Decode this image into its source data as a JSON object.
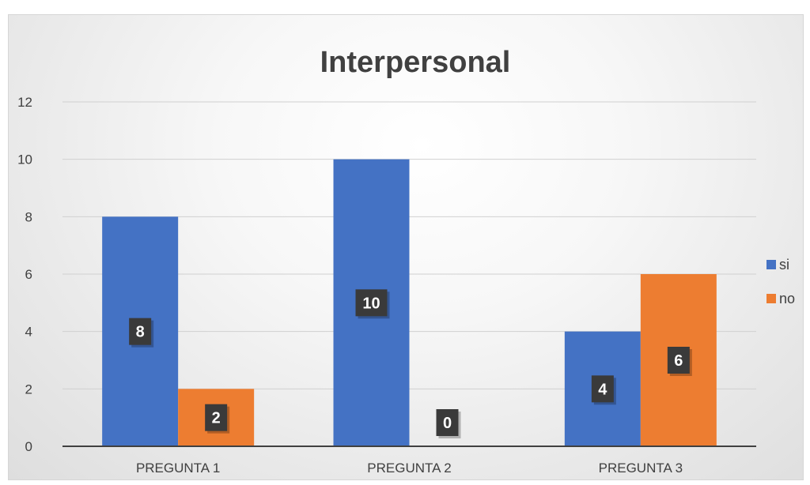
{
  "chart_data": {
    "type": "bar",
    "title": "Interpersonal",
    "categories": [
      "PREGUNTA 1",
      "PREGUNTA 2",
      "PREGUNTA 3"
    ],
    "series": [
      {
        "name": "si",
        "values": [
          8,
          10,
          4
        ],
        "color": "#4472C4"
      },
      {
        "name": "no",
        "values": [
          2,
          0,
          6
        ],
        "color": "#ED7D31"
      }
    ],
    "ylim": [
      0,
      12
    ],
    "yticks": [
      0,
      2,
      4,
      6,
      8,
      10,
      12
    ],
    "grid": true,
    "legend_position": "right",
    "data_labels": true,
    "data_label_color": "#3a3a3a"
  }
}
